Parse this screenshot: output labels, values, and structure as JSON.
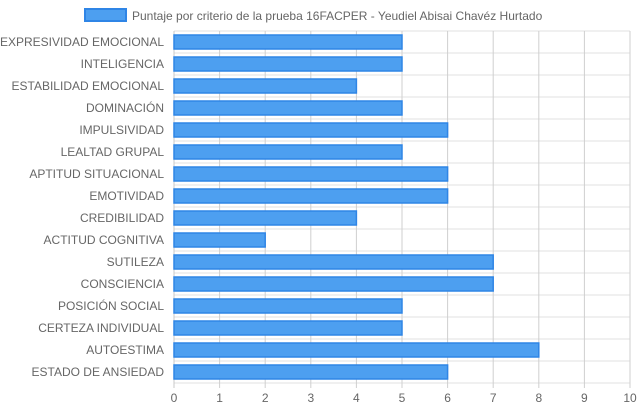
{
  "colors": {
    "bar_fill": "#4d9ff0",
    "bar_stroke": "#2f85e6",
    "grid": "#e2e2e2",
    "grid_strong": "#cfcfcf",
    "axis": "#c8c8c8",
    "text": "#666666"
  },
  "chart_data": {
    "type": "bar",
    "orientation": "horizontal",
    "title": "",
    "xlabel": "",
    "ylabel": "",
    "xlim": [
      0,
      10
    ],
    "x_ticks": [
      "0",
      "1",
      "2",
      "3",
      "4",
      "5",
      "6",
      "7",
      "8",
      "9",
      "10"
    ],
    "grid": true,
    "legend_position": "top-center",
    "categories": [
      "EXPRESIVIDAD EMOCIONAL",
      "INTELIGENCIA",
      "ESTABILIDAD EMOCIONAL",
      "DOMINACIÓN",
      "IMPULSIVIDAD",
      "LEALTAD GRUPAL",
      "APTITUD SITUACIONAL",
      "EMOTIVIDAD",
      "CREDIBILIDAD",
      "ACTITUD COGNITIVA",
      "SUTILEZA",
      "CONSCIENCIA",
      "POSICIÓN SOCIAL",
      "CERTEZA INDIVIDUAL",
      "AUTOESTIMA",
      "ESTADO DE ANSIEDAD"
    ],
    "series": [
      {
        "name": "Puntaje por criterio de la prueba 16FACPER - Yeudiel Abisai Chavéz Hurtado",
        "values": [
          5,
          5,
          4,
          5,
          6,
          5,
          6,
          6,
          4,
          2,
          7,
          7,
          5,
          5,
          8,
          6
        ]
      }
    ]
  }
}
